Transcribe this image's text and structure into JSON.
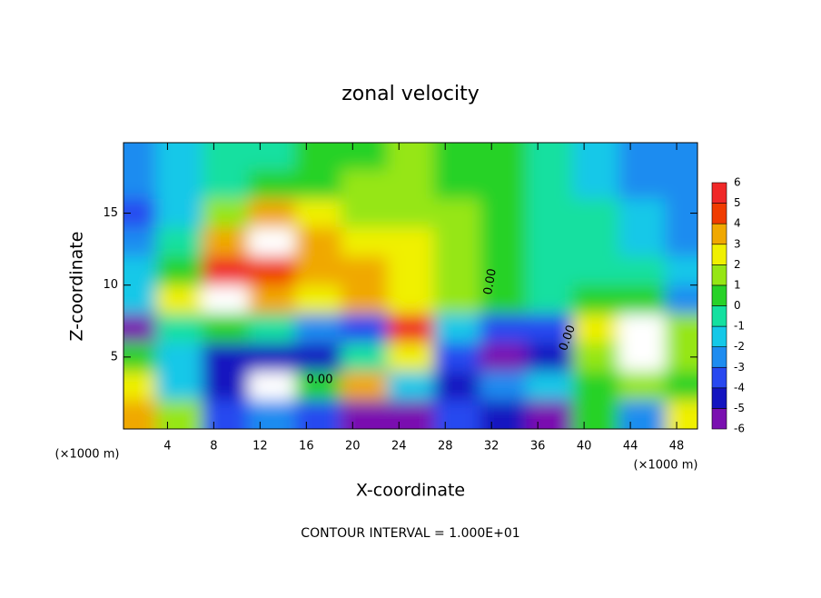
{
  "chart_data": {
    "type": "contour",
    "title": "zonal velocity",
    "x_label": "X-coordinate",
    "y_label": "Z-coordinate",
    "x_unit": "(×1000 m)",
    "footer": "CONTOUR INTERVAL = 1.000E+01",
    "contour_labels": [
      "0.00",
      "0.00",
      "0.00"
    ],
    "x": [
      1,
      5,
      9,
      13,
      17,
      21,
      25,
      29,
      33,
      37,
      41,
      45,
      49
    ],
    "z": [
      19,
      17,
      15,
      13,
      11,
      9,
      7,
      5,
      3,
      1
    ],
    "values": [
      [
        -2,
        -1.5,
        -0.5,
        0,
        0.5,
        1,
        1.5,
        1,
        0.5,
        0,
        -1,
        -2,
        -2
      ],
      [
        -2.5,
        -1.5,
        0,
        0.5,
        1,
        1.5,
        1.5,
        1,
        0.5,
        0,
        -1,
        -2,
        -2.5
      ],
      [
        -3,
        -1,
        2,
        4,
        3,
        2,
        2,
        1.5,
        0.5,
        0,
        -0.5,
        -1.5,
        -2.5
      ],
      [
        -2,
        -0.5,
        4,
        7,
        4,
        3,
        2.5,
        1.5,
        0.5,
        0,
        -0.5,
        -1,
        -2
      ],
      [
        -1,
        1,
        6,
        5,
        4,
        3.5,
        3,
        2,
        0.5,
        0,
        0,
        -0.5,
        -1.5
      ],
      [
        -1,
        3,
        7,
        4,
        3,
        4,
        3,
        1.5,
        0.5,
        0,
        1,
        0.5,
        -2.5
      ],
      [
        -5,
        0,
        1,
        -0.5,
        -2,
        -3,
        6,
        -1,
        -3,
        -3,
        3,
        7,
        2
      ],
      [
        1,
        -1,
        -4,
        -4,
        -4,
        0,
        3,
        -3,
        -6,
        -4,
        2,
        8,
        2
      ],
      [
        3,
        -1,
        -4,
        -7,
        1,
        4,
        -1,
        -4,
        -2,
        -1,
        1,
        2,
        1
      ],
      [
        4,
        2,
        -3,
        -2,
        -3,
        -5,
        -6,
        -3,
        -4,
        -5,
        1,
        -2,
        3
      ]
    ],
    "levels": [
      -6,
      -5,
      -4,
      -3,
      -2,
      -1,
      0,
      1,
      2,
      3,
      4,
      5,
      6
    ],
    "colors": [
      "#7a10b0",
      "#1414c0",
      "#2848f0",
      "#1e8cf0",
      "#14c8e8",
      "#14e0a0",
      "#28d228",
      "#96e614",
      "#f0f000",
      "#f0a800",
      "#f03c00",
      "#f02828",
      "#f07878"
    ],
    "over_color": "#ffffff",
    "under_color": "#ffffff",
    "xlim": [
      0.2,
      49.8
    ],
    "ylim": [
      0,
      19.9
    ],
    "xticks": [
      4,
      8,
      12,
      16,
      20,
      24,
      28,
      32,
      36,
      40,
      44,
      48
    ],
    "yticks": [
      5,
      10,
      15
    ]
  }
}
